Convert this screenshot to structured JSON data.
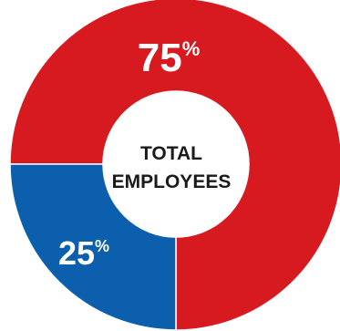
{
  "chart_data": {
    "type": "pie",
    "style": "donut",
    "center_label": [
      "TOTAL",
      "EMPLOYEES"
    ],
    "slices": [
      {
        "label": "75%",
        "value": 75,
        "color": "#d71920"
      },
      {
        "label": "25%",
        "value": 25,
        "color": "#0b5fad"
      }
    ]
  }
}
